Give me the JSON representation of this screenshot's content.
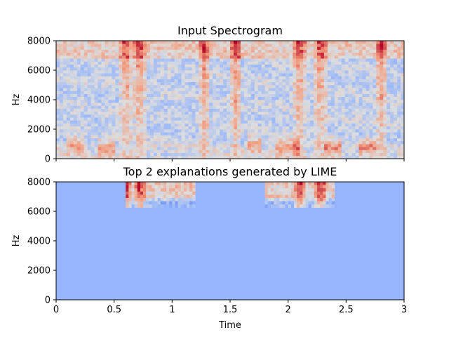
{
  "chart_data": [
    {
      "type": "heatmap",
      "title": "Input Spectrogram",
      "xlabel": "",
      "ylabel": "Hz",
      "xlim": [
        0,
        3
      ],
      "ylim": [
        0,
        8000
      ],
      "yticks": [
        0,
        2000,
        4000,
        6000,
        8000
      ],
      "ytick_labels": [
        "0",
        "2000",
        "4000",
        "6000",
        "8000"
      ],
      "xtick_labels_shown": false,
      "colormap": "coolwarm",
      "high_energy_bursts_s": [
        0.6,
        0.72,
        1.28,
        1.55,
        2.1,
        2.28,
        2.8
      ],
      "low_freq_blobs": [
        {
          "t0": 0.08,
          "t1": 0.25,
          "f": 900
        },
        {
          "t0": 0.35,
          "t1": 0.52,
          "f": 700
        },
        {
          "t0": 1.65,
          "t1": 1.78,
          "f": 1000
        },
        {
          "t0": 1.9,
          "t1": 2.1,
          "f": 800
        },
        {
          "t0": 2.3,
          "t1": 2.45,
          "f": 700
        },
        {
          "t0": 2.6,
          "t1": 2.75,
          "f": 800
        }
      ]
    },
    {
      "type": "heatmap",
      "title": "Top 2 explanations generated by LIME",
      "xlabel": "Time",
      "ylabel": "Hz",
      "xlim": [
        0,
        3
      ],
      "ylim": [
        0,
        8000
      ],
      "xticks": [
        0,
        0.5,
        1,
        1.5,
        2,
        2.5,
        3
      ],
      "xtick_labels": [
        "0",
        "0.5",
        "1",
        "1.5",
        "2",
        "2.5",
        "3"
      ],
      "yticks": [
        0,
        2000,
        4000,
        6000,
        8000
      ],
      "ytick_labels": [
        "0",
        "2000",
        "4000",
        "6000",
        "8000"
      ],
      "background_color": "#96b5fd",
      "explanation_regions": [
        {
          "t0": 0.6,
          "t1": 1.2,
          "f0": 6250,
          "f1": 8000
        },
        {
          "t0": 1.8,
          "t1": 2.4,
          "f0": 6250,
          "f1": 8000
        }
      ]
    }
  ]
}
